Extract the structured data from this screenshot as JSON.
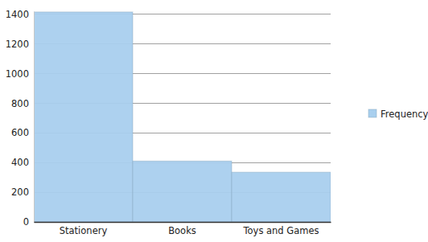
{
  "chart_data": {
    "type": "bar",
    "categories": [
      "Stationery",
      "Books",
      "Toys and Games"
    ],
    "series": [
      {
        "name": "Frequency",
        "color": "#a9cfee",
        "values": [
          1415,
          410,
          335
        ]
      }
    ],
    "ylim": [
      0,
      1420
    ],
    "yticks": [
      0,
      200,
      400,
      600,
      800,
      1000,
      1200,
      1400
    ],
    "grid": true,
    "legend": "right"
  }
}
